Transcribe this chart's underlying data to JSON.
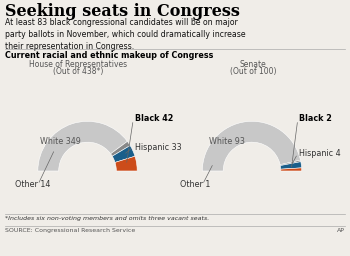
{
  "title": "Seeking seats in Congress",
  "subtitle": "At least 83 black congressional candidates will be on major\nparty ballots in November, which could dramatically increase\ntheir representation in Congress.",
  "section_title": "Current racial and ethnic makeup of Congress",
  "footnote": "*Includes six non-voting members and omits three vacant seats.",
  "source": "SOURCE: Congressional Research Service",
  "credit": "AP",
  "house": {
    "label": "House of Representatives",
    "sublabel": "(Out of 438*)",
    "total": 438,
    "white": 349,
    "black": 42,
    "hispanic": 33,
    "other": 14,
    "white_color": "#c8c8c8",
    "black_color": "#cc4c1a",
    "hispanic_color": "#1a5e8a",
    "other_color": "#888888"
  },
  "senate": {
    "label": "Senate",
    "sublabel": "(Out of 100)",
    "total": 100,
    "white": 93,
    "black": 2,
    "hispanic": 4,
    "other": 1,
    "white_color": "#c8c8c8",
    "black_color": "#cc4c1a",
    "hispanic_color": "#1a5e8a",
    "other_color": "#888888"
  },
  "bg_color": "#f0ede8"
}
